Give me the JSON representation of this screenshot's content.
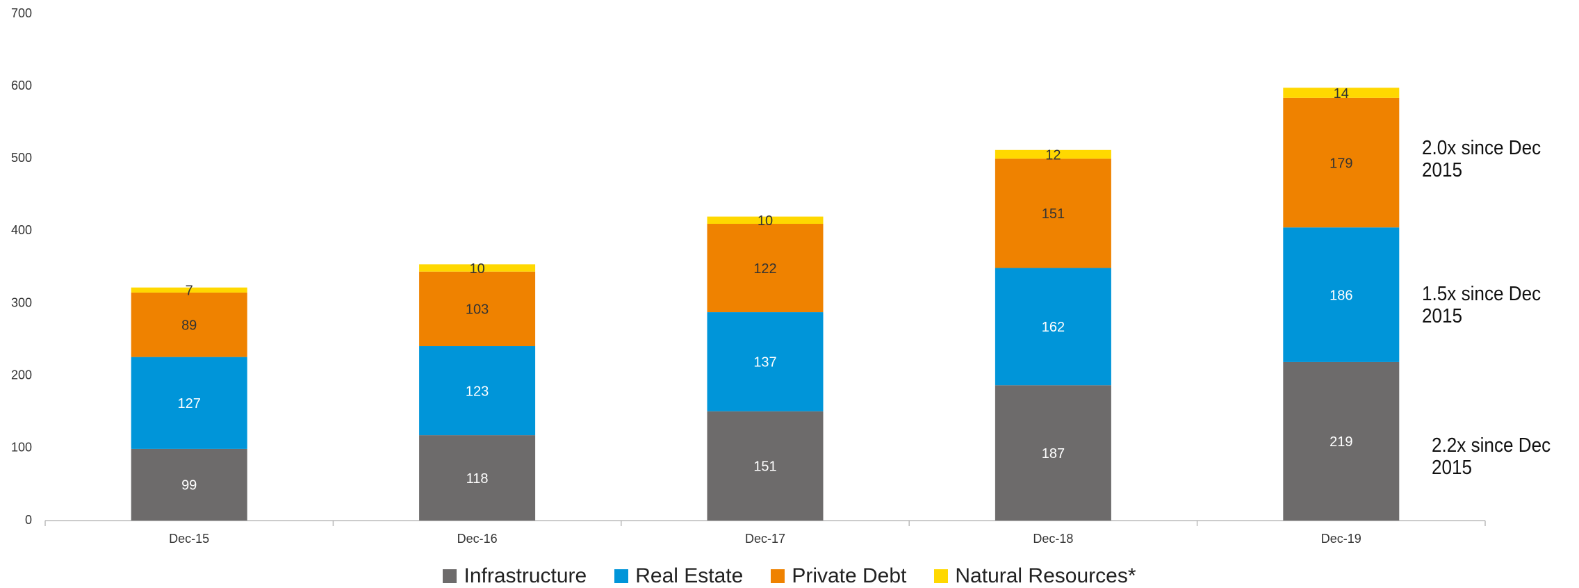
{
  "chart_data": {
    "type": "bar",
    "stacked": true,
    "categories": [
      "Dec-15",
      "Dec-16",
      "Dec-17",
      "Dec-18",
      "Dec-19"
    ],
    "series": [
      {
        "name": "Infrastructure",
        "color": "#6d6b6b",
        "values": [
          99,
          118,
          151,
          187,
          219
        ]
      },
      {
        "name": "Real Estate",
        "color": "#0095d9",
        "values": [
          127,
          123,
          137,
          162,
          186
        ]
      },
      {
        "name": "Private Debt",
        "color": "#ef8200",
        "values": [
          89,
          103,
          122,
          151,
          179
        ]
      },
      {
        "name": "Natural Resources*",
        "color": "#ffd800",
        "values": [
          7,
          10,
          10,
          12,
          14
        ]
      }
    ],
    "ylim": [
      0,
      700
    ],
    "yticks": [
      0,
      100,
      200,
      300,
      400,
      500,
      600,
      700
    ],
    "grid": false,
    "legend": "bottom",
    "annotations": [
      "2.0x since Dec 2015",
      "1.5x since Dec 2015",
      "2.2x since Dec 2015"
    ]
  }
}
